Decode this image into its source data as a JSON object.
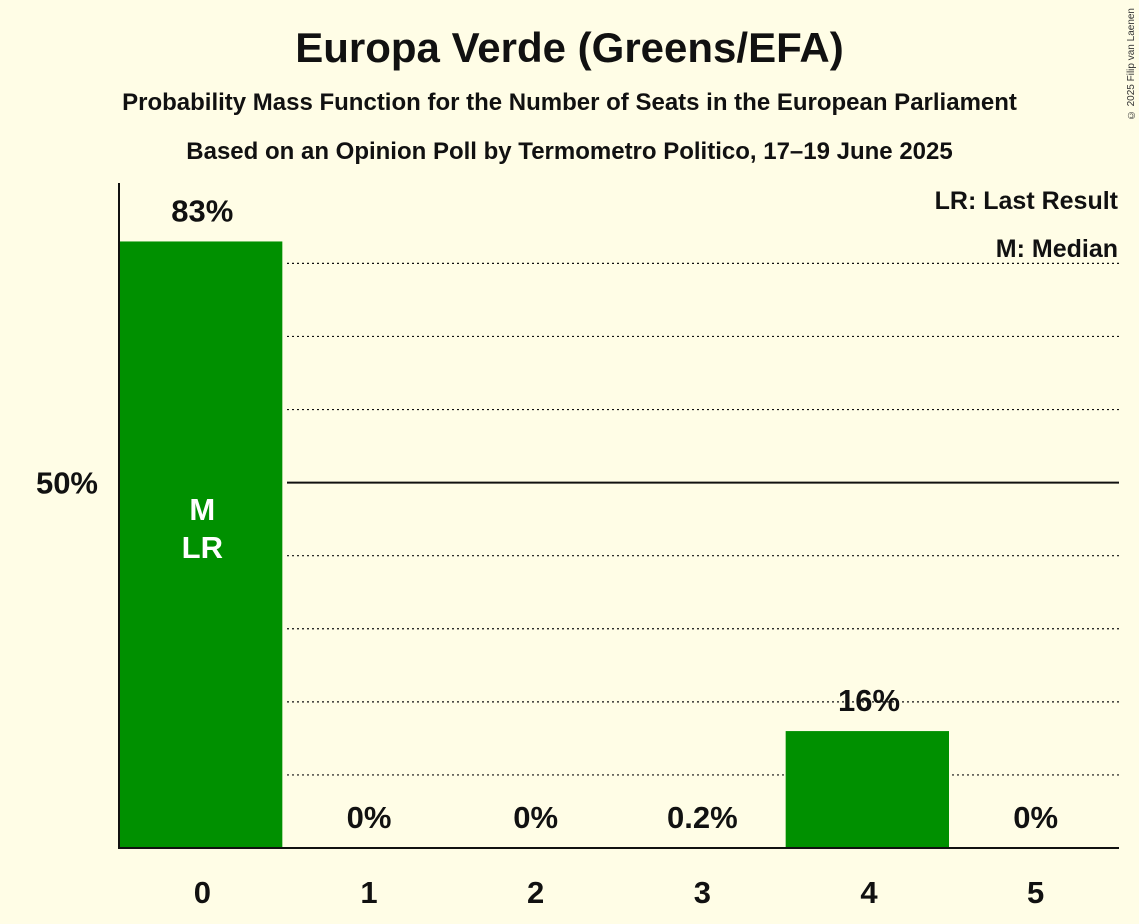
{
  "title": "Europa Verde (Greens/EFA)",
  "subtitle": "Probability Mass Function for the Number of Seats in the European Parliament",
  "subtitle2": "Based on an Opinion Poll by Termometro Politico, 17–19 June 2025",
  "copyright": "© 2025 Filip van Laenen",
  "legend": {
    "last_result": "LR: Last Result",
    "median": "M: Median"
  },
  "colors": {
    "bar": "#009000",
    "background": "#fffde6",
    "text": "#111111"
  },
  "chart_data": {
    "type": "bar",
    "title": "Europa Verde (Greens/EFA)",
    "xlabel": "",
    "ylabel": "",
    "categories": [
      "0",
      "1",
      "2",
      "3",
      "4",
      "5"
    ],
    "values": [
      83,
      0,
      0,
      0.2,
      16,
      0
    ],
    "value_labels": [
      "83%",
      "0%",
      "0%",
      "0.2%",
      "16%",
      "0%"
    ],
    "ylim": [
      0,
      91
    ],
    "y_tick_label": "50%",
    "y_tick_value": 50,
    "gridlines": [
      10,
      20,
      30,
      40,
      60,
      70,
      80
    ],
    "bar_markers": [
      {
        "category": "0",
        "lines": [
          "M",
          "LR"
        ]
      }
    ]
  }
}
